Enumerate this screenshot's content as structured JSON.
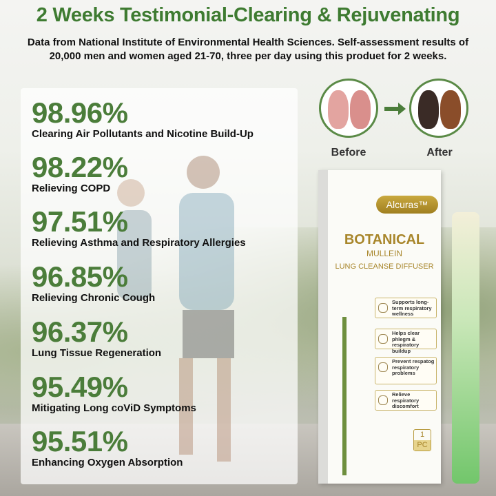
{
  "header": {
    "title": "2 Weeks Testimonial-Clearing & Rejuvenating",
    "subtitle_line1": "Data from National Institute of Environmental Health Sciences. Self-assessment results of",
    "subtitle_line2": "20,000 men and women aged 21-70, three per day using this produet for 2 weeks."
  },
  "stats": [
    {
      "value": "98.96%",
      "label": "Clearing Air Pollutants and Nicotine Build-Up"
    },
    {
      "value": "98.22%",
      "label": "Relieving COPD"
    },
    {
      "value": "97.51%",
      "label": "Relieving Asthma and Respiratory Allergies"
    },
    {
      "value": "96.85%",
      "label": "Relieving Chronic Cough"
    },
    {
      "value": "96.37%",
      "label": "Lung Tissue Regeneration"
    },
    {
      "value": "95.49%",
      "label": "Mitigating Long coViD Symptoms"
    },
    {
      "value": "95.51%",
      "label": "Enhancing Oxygen Absorption"
    }
  ],
  "comparison": {
    "before": "Before",
    "after": "After"
  },
  "product": {
    "brand": "Alcuras™",
    "name": "BOTANICAL",
    "line2": "MULLEIN",
    "line3": "LUNG CLEANSE DIFFUSER",
    "features": [
      "Supports long-term respiratory wellness",
      "Helps clear phlegm & respiratory buildup",
      "Prevent respatog respiratory problems",
      "Relieve respiratory discomfort"
    ],
    "qty_num": "1",
    "qty_unit": "PC"
  },
  "colors": {
    "accent_green": "#4b7d3a",
    "gold": "#a8862b"
  }
}
